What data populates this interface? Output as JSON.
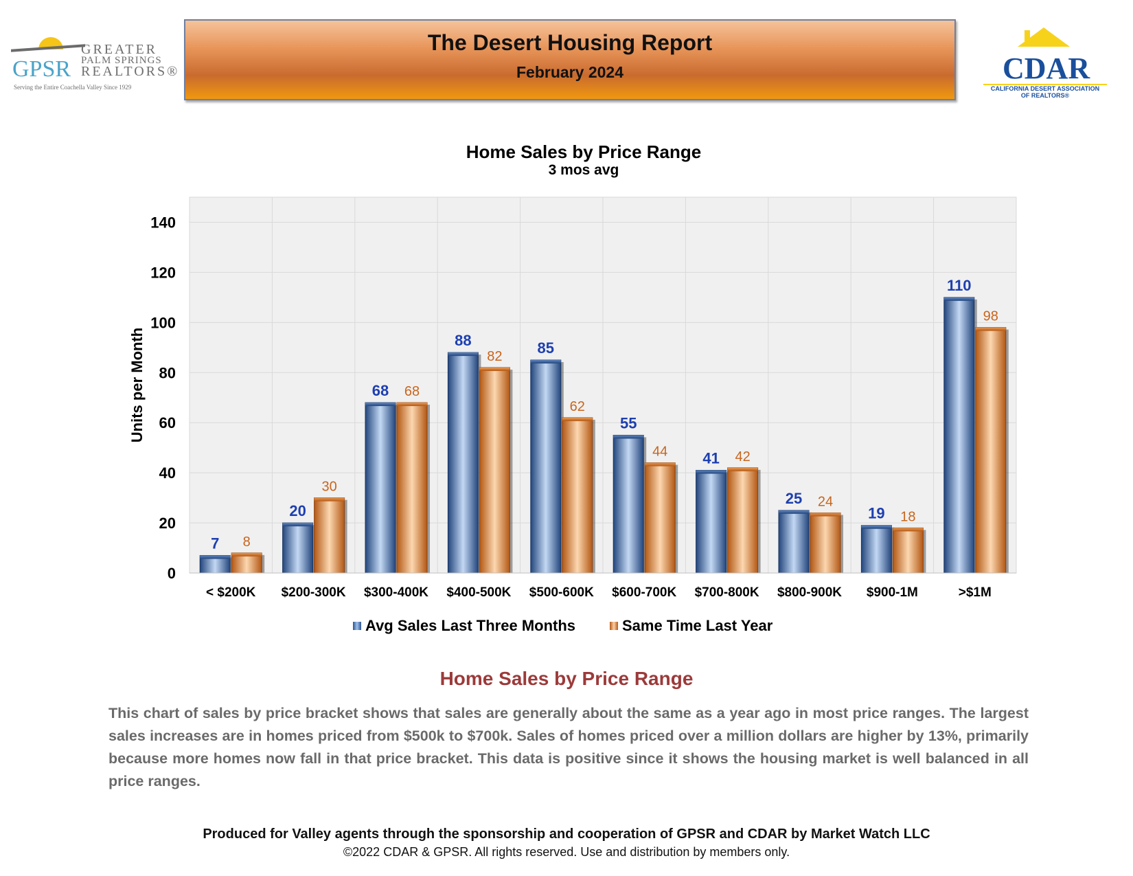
{
  "header": {
    "left_logo": {
      "mark": "GPSR",
      "line1": "GREATER",
      "line2": "PALM SPRINGS",
      "line3": "REALTORS®",
      "tagline": "Serving the Entire Coachella Valley Since 1929"
    },
    "title": "The Desert Housing Report",
    "subtitle": "February 2024",
    "right_logo": {
      "mark": "CDAR",
      "line1": "CALIFORNIA DESERT ASSOCIATION",
      "line2": "OF REALTORS®"
    }
  },
  "chart_data": {
    "type": "bar",
    "title": "Home Sales by Price Range",
    "subtitle": "3 mos avg",
    "ylabel": "Units per Month",
    "xlabel": "",
    "ylim": [
      0,
      150
    ],
    "yticks": [
      0,
      20,
      40,
      60,
      80,
      100,
      120,
      140
    ],
    "grid": true,
    "legend_position": "bottom",
    "categories": [
      "< $200K",
      "$200-300K",
      "$300-400K",
      "$400-500K",
      "$500-600K",
      "$600-700K",
      "$700-800K",
      "$800-900K",
      "$900-1M",
      ">$1M"
    ],
    "series": [
      {
        "name": "Avg Sales Last Three Months",
        "values": [
          7,
          20,
          68,
          88,
          85,
          55,
          41,
          25,
          19,
          110
        ],
        "color": "#2c5490",
        "label_color": "#1d3fb0"
      },
      {
        "name": "Same Time Last Year",
        "values": [
          8,
          30,
          68,
          82,
          62,
          44,
          42,
          24,
          18,
          98
        ],
        "color": "#d2721f",
        "label_color": "#c8651c"
      }
    ]
  },
  "section": {
    "title": "Home Sales by Price Range",
    "body": "This chart of sales by price bracket shows that sales are generally about the same as a year ago in most price ranges. The largest sales increases are in homes priced from $500k to $700k. Sales of homes priced over a million dollars are higher by 13%, primarily because more homes now fall in that price bracket. This data is positive since it shows the housing market is well balanced in all price ranges."
  },
  "footer": {
    "line1": "Produced for Valley agents through the sponsorship and cooperation of GPSR and CDAR by Market Watch LLC",
    "line2": "©2022 CDAR & GPSR.  All rights reserved.  Use and distribution by members only."
  }
}
